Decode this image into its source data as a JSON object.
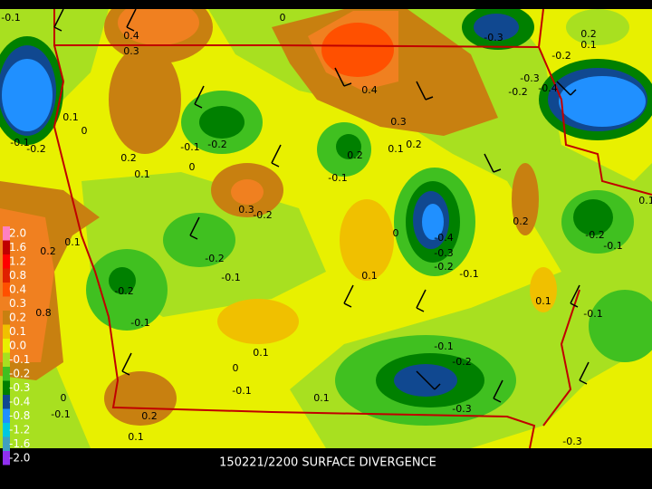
{
  "map": {
    "caption": "150221/2200 SURFACE DIVERGENCE",
    "colorbar": {
      "labels": [
        "2.0",
        "1.6",
        "1.2",
        "0.8",
        "0.4",
        "0.3",
        "0.2",
        "0.1",
        "0.0",
        "-0.1",
        "-0.2",
        "-0.3",
        "-0.4",
        "-0.8",
        "-1.2",
        "-1.6",
        "-2.0"
      ],
      "colors": [
        "#ff80c0",
        "#c00000",
        "#ff0000",
        "#e02000",
        "#ff5000",
        "#f08020",
        "#c88010",
        "#f0c000",
        "#e8f000",
        "#a8e020",
        "#40c020",
        "#008000",
        "#104890",
        "#2090ff",
        "#00c8e0",
        "#40a0c0",
        "#9030f0"
      ]
    },
    "contour_labels": [
      "-0.1",
      "0",
      "0.4",
      "0.3",
      "-0.3",
      "0.2",
      "0.1",
      "-0.2",
      "-0.3",
      "-0.2",
      "-0.4",
      "0.4",
      "0.1",
      "0",
      "-0.1",
      "-0.2",
      "0.3",
      "0.1",
      "0.2",
      "-0.1",
      "-0.2",
      "0.2",
      "0.2",
      "0.1",
      "0",
      "-0.1",
      "0.3",
      "-0.2",
      "0.2",
      "0",
      "-0.2",
      "-0.1",
      "-0.4",
      "0.2",
      "0.1",
      "-0.3",
      "-0.2",
      "-0.1",
      "-0.2",
      "-0.1",
      "0.1",
      "0.1",
      "-0.2",
      "-0.1",
      "-0.1",
      "0.8",
      "0.1",
      "-0.1",
      "-0.2",
      "0",
      "-0.1",
      "0.1",
      "0",
      "-0.1",
      "-0.3",
      "0.2",
      "0.1",
      "-0.3",
      "0.1"
    ]
  }
}
